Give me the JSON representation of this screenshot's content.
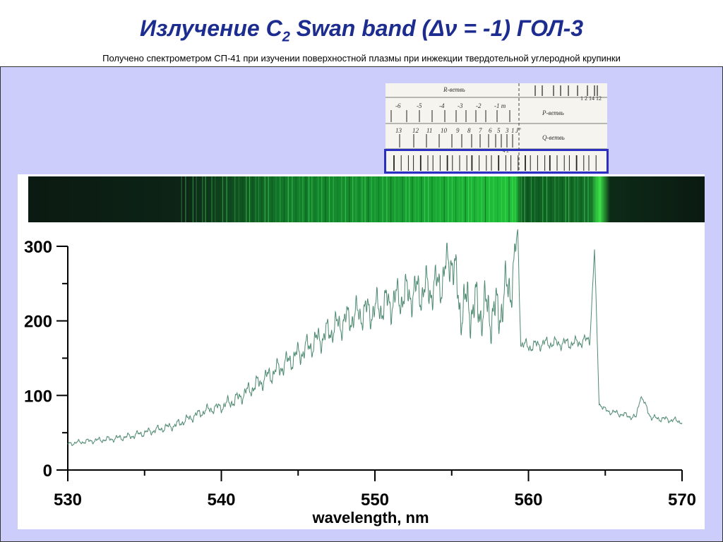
{
  "header": {
    "title_main": "Излучение C",
    "title_sub": "2",
    "title_rest": " Swan band (Δν = -1) ГОЛ-3",
    "subtitle": "Получено спектрометром СП-41 при изучении поверхностной плазмы при инжекции твердотельной углеродной крупинки"
  },
  "atlas": {
    "r_branch_label": "R-ветвь",
    "p_branch_label": "P-ветвь",
    "q_branch_label": "Q-ветвь",
    "p_numbers": [
      "-6",
      "-5",
      "-4",
      "-3",
      "-2",
      "-1 m"
    ],
    "q_numbers": [
      "13",
      "12",
      "11",
      "10",
      "9",
      "8",
      "7",
      "6",
      "5",
      "3",
      "1",
      "J\""
    ],
    "r_numbers": "1 2 14 12",
    "q_mark": "4 2"
  },
  "colors": {
    "title": "#1c2d8f",
    "panel_bg": "#cccdfb",
    "frame": "#2b2fbf",
    "trace": "#4f8a72",
    "strip_bg": "#0b1a12",
    "strip_green": "#22c23a"
  },
  "chart_data": {
    "type": "line",
    "title": "",
    "xlabel": "wavelength, nm",
    "ylabel": "",
    "xlim": [
      530,
      570
    ],
    "ylim": [
      0,
      300
    ],
    "x_ticks": [
      530,
      540,
      550,
      560,
      570
    ],
    "y_ticks": [
      0,
      100,
      200,
      300
    ],
    "grid": false,
    "series": [
      {
        "x": [
          530,
          531,
          532,
          533,
          534,
          535,
          536,
          537,
          538,
          539,
          540,
          541,
          542,
          543,
          544,
          545,
          546,
          547,
          548,
          549,
          550,
          551,
          552,
          553,
          554,
          554.5,
          555,
          555.2,
          555.5,
          556,
          557,
          558,
          559,
          559.3,
          559.5,
          560,
          561,
          562,
          563,
          564,
          564.3,
          564.6,
          565,
          566,
          567,
          567.3,
          568,
          569,
          570
        ],
        "y": [
          35,
          38,
          40,
          42,
          45,
          50,
          55,
          60,
          70,
          80,
          85,
          95,
          110,
          125,
          140,
          155,
          170,
          185,
          200,
          210,
          215,
          225,
          235,
          240,
          245,
          260,
          290,
          260,
          220,
          220,
          215,
          210,
          260,
          320,
          170,
          165,
          170,
          170,
          170,
          175,
          295,
          90,
          80,
          75,
          70,
          100,
          70,
          68,
          65
        ]
      }
    ]
  }
}
